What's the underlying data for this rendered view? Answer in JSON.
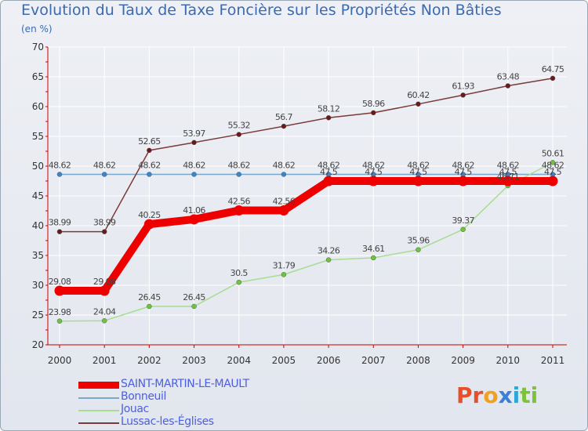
{
  "title": "Evolution du Taux de Taxe Foncière sur les Propriétés Non Bâties",
  "unit": "(en %)",
  "logo_text": "Proxiti",
  "colors": {
    "axis": "#cc0000",
    "grid": "#ffffff",
    "tick_label": "#333333",
    "data_label": "#444444"
  },
  "chart_data": {
    "type": "line",
    "title": "Evolution du Taux de Taxe Foncière sur les Propriétés Non Bâties",
    "ylabel": "(en %)",
    "xlabel": "",
    "ylim": [
      20,
      70
    ],
    "yticks": [
      20,
      25,
      30,
      35,
      40,
      45,
      50,
      55,
      60,
      65,
      70
    ],
    "x": [
      "2000",
      "2001",
      "2002",
      "2003",
      "2004",
      "2005",
      "2006",
      "2007",
      "2008",
      "2009",
      "2010",
      "2011"
    ],
    "series": [
      {
        "name": "SAINT-MARTIN-LE-MAULT",
        "color": "#ee0000",
        "point_color": "#ee0000",
        "width": "thick",
        "values": [
          29.08,
          29.08,
          40.25,
          41.06,
          42.56,
          42.56,
          47.5,
          47.5,
          47.5,
          47.5,
          47.5,
          47.5
        ],
        "labels": [
          "29.08",
          "29.08",
          "40.25",
          "41.06",
          "42.56",
          "42.56",
          "47.5",
          "47.5",
          "47.5",
          "47.5",
          "47.5",
          "47.5"
        ]
      },
      {
        "name": "Bonneuil",
        "color": "#7aa8cc",
        "point_color": "#3a86c8",
        "width": "thin",
        "values": [
          48.62,
          48.62,
          48.62,
          48.62,
          48.62,
          48.62,
          48.62,
          48.62,
          48.62,
          48.62,
          48.62,
          48.62
        ],
        "labels": [
          "48.62",
          "48.62",
          "48.62",
          "48.62",
          "48.62",
          "48.62",
          "48.62",
          "48.62",
          "48.62",
          "48.62",
          "48.62",
          "48.62"
        ]
      },
      {
        "name": "Jouac",
        "color": "#a8dc90",
        "point_color": "#6cc53a",
        "width": "thin",
        "values": [
          23.98,
          24.04,
          26.45,
          26.45,
          30.5,
          31.79,
          34.26,
          34.61,
          35.96,
          39.37,
          46.71,
          50.61
        ],
        "labels": [
          "23.98",
          "24.04",
          "26.45",
          "26.45",
          "30.5",
          "31.79",
          "34.26",
          "34.61",
          "35.96",
          "39.37",
          "46.71",
          "50.61"
        ]
      },
      {
        "name": "Lussac-les-Églises",
        "color": "#7a3a3a",
        "point_color": "#6a1a1a",
        "width": "thin",
        "values": [
          38.99,
          38.99,
          52.65,
          53.97,
          55.32,
          56.7,
          58.12,
          58.96,
          60.42,
          61.93,
          63.48,
          64.75
        ],
        "labels": [
          "38.99",
          "38.99",
          "52.65",
          "53.97",
          "55.32",
          "56.7",
          "58.12",
          "58.96",
          "60.42",
          "61.93",
          "63.48",
          "64.75"
        ]
      }
    ]
  }
}
